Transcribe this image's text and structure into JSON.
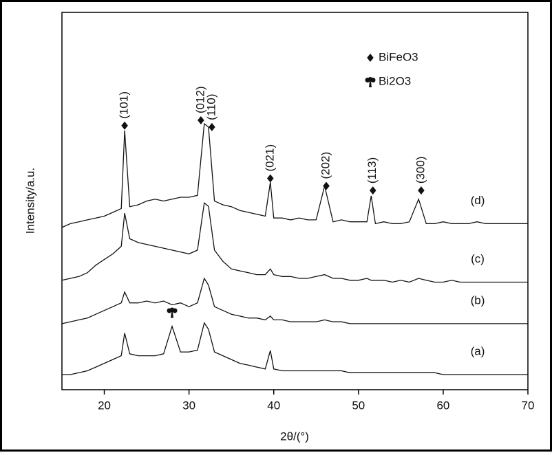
{
  "chart_data": {
    "type": "line",
    "xlabel": "2θ/(°)",
    "ylabel": "Intensity/a.u.",
    "xlim": [
      15,
      70
    ],
    "xticks": [
      20,
      30,
      40,
      50,
      60,
      70
    ],
    "ylim": [
      0,
      100
    ],
    "x": [
      15,
      16,
      17,
      18,
      19,
      20,
      21,
      22,
      22.4,
      23,
      24,
      25,
      26,
      27,
      28,
      29,
      30,
      31,
      31.8,
      32.3,
      33,
      34,
      35,
      36,
      37,
      38,
      39,
      39.6,
      40,
      41,
      42,
      43,
      44,
      45,
      46,
      47,
      48,
      49,
      50,
      51,
      51.5,
      52,
      53,
      54,
      55,
      56,
      57.1,
      58,
      59,
      60,
      61,
      62,
      63,
      64,
      65,
      66,
      67,
      68,
      69,
      70
    ],
    "series": [
      {
        "name": "(a)",
        "color": "#111111",
        "values": [
          4,
          4,
          4.5,
          5,
          6,
          7,
          8,
          9,
          15,
          9.5,
          9,
          9,
          9,
          9.5,
          16.8,
          10,
          10,
          10.5,
          17.7,
          16,
          10,
          9,
          8,
          7,
          6.5,
          6,
          5.5,
          10.4,
          5.5,
          5,
          5,
          5,
          5,
          5,
          5,
          5,
          5,
          4.5,
          4.5,
          4.5,
          4.5,
          4.5,
          4.5,
          4.5,
          4.5,
          4.5,
          4.5,
          4.5,
          4.5,
          4,
          4,
          4,
          4,
          4,
          4,
          4,
          4,
          4,
          4,
          4
        ]
      },
      {
        "name": "(b)",
        "color": "#111111",
        "values": [
          17.5,
          18,
          18.5,
          19,
          20,
          21,
          22,
          23,
          25.9,
          23,
          23,
          23.5,
          23,
          23.5,
          22.5,
          23,
          22,
          23,
          29.5,
          27.7,
          22,
          21,
          20,
          19.5,
          19,
          19,
          18.5,
          19.5,
          18.5,
          18.5,
          18,
          18,
          18,
          18,
          18.5,
          18,
          18,
          17.5,
          17.5,
          17.5,
          17.5,
          17.5,
          17.5,
          17.5,
          17.5,
          17.5,
          17.5,
          17.5,
          17.5,
          17.5,
          17.5,
          17.5,
          17.5,
          17.5,
          17.5,
          17.5,
          17.5,
          17.5,
          17.5,
          17.5
        ]
      },
      {
        "name": "(c)",
        "color": "#111111",
        "values": [
          29,
          29.5,
          30,
          31,
          33,
          34.5,
          36,
          38,
          46.8,
          40,
          39,
          38.5,
          38,
          37.5,
          37,
          36.5,
          36,
          37,
          49.5,
          48.6,
          37,
          34,
          32,
          31.5,
          31,
          30.5,
          30.5,
          32,
          30.5,
          30,
          30,
          29.5,
          29.5,
          30,
          30.5,
          29.5,
          29.5,
          29,
          29,
          29.5,
          29,
          29,
          29,
          28.5,
          29,
          28.5,
          29.5,
          29,
          28.5,
          28.5,
          29,
          28.5,
          28.5,
          28.5,
          28.5,
          28.5,
          28.5,
          28.5,
          28.5,
          28.5
        ]
      },
      {
        "name": "(d)",
        "color": "#111111",
        "values": [
          43,
          44,
          44.5,
          45,
          45.5,
          46,
          47,
          48,
          68.7,
          48.5,
          49,
          50,
          50.5,
          50,
          50.5,
          51,
          51,
          51.5,
          70.5,
          69.6,
          50,
          49,
          48.5,
          47.5,
          47,
          46.5,
          46,
          55,
          45.5,
          45.5,
          45,
          45.5,
          45,
          45,
          54,
          44.5,
          45,
          44.5,
          44.5,
          44.5,
          51.4,
          44,
          44.5,
          44,
          44,
          44.5,
          50.5,
          44,
          44,
          44.5,
          44,
          44,
          44,
          44.5,
          44,
          44,
          44,
          44,
          44,
          44
        ]
      }
    ],
    "phases": [
      {
        "name": "BiFeO3",
        "marker": "diamond"
      },
      {
        "name": "Bi2O3",
        "marker": "club"
      }
    ],
    "peaks": [
      {
        "label": "(101)",
        "x": 22.4,
        "y": 70,
        "marker": "diamond"
      },
      {
        "label": "(012)",
        "x": 31.4,
        "y": 71.4,
        "marker": "diamond"
      },
      {
        "label": "(110)",
        "x": 32.7,
        "y": 69.6,
        "marker": "diamond"
      },
      {
        "label": "(021)",
        "x": 39.6,
        "y": 56,
        "marker": "diamond"
      },
      {
        "label": "(202)",
        "x": 46.2,
        "y": 54,
        "marker": "diamond"
      },
      {
        "label": "(113)",
        "x": 51.7,
        "y": 52.8,
        "marker": "diamond"
      },
      {
        "label": "(300)",
        "x": 57.4,
        "y": 52.8,
        "marker": "diamond"
      },
      {
        "x": 28,
        "y": 20.5,
        "marker": "club"
      }
    ]
  }
}
